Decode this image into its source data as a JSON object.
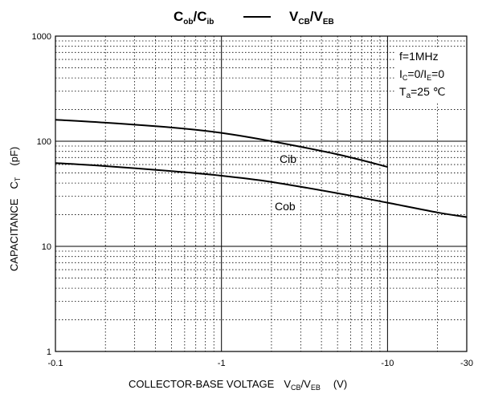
{
  "chart_data": {
    "type": "line",
    "title": {
      "left": {
        "main1": "C",
        "sub1": "ob",
        "sep": "/C",
        "sub2": "ib"
      },
      "right": {
        "main1": "V",
        "sub1": "CB",
        "sep": "/V",
        "sub2": "EB"
      }
    },
    "xlabel": {
      "text": "COLLECTOR-BASE VOLTAGE",
      "sym": "V",
      "sub1": "CB",
      "sep": "/V",
      "sub2": "EB",
      "unit": "(V)"
    },
    "ylabel": {
      "text": "CAPACITANCE",
      "sym": "C",
      "sub": "T",
      "unit": "(pF)"
    },
    "x_scale": "log",
    "y_scale": "log",
    "xlim": [
      -0.1,
      -30
    ],
    "ylim": [
      1,
      1000
    ],
    "x_ticks": [
      {
        "value": -0.1,
        "label": "-0.1"
      },
      {
        "value": -1,
        "label": "-1"
      },
      {
        "value": -10,
        "label": "-10"
      },
      {
        "value": -30,
        "label": "-30"
      }
    ],
    "y_ticks": [
      {
        "value": 1,
        "label": "1"
      },
      {
        "value": 10,
        "label": "10"
      },
      {
        "value": 100,
        "label": "100"
      },
      {
        "value": 1000,
        "label": "1000"
      }
    ],
    "grid": true,
    "conditions": {
      "freq": "f=1MHz",
      "bias": {
        "a": "I",
        "a_sub": "C",
        "b": "=0/I",
        "b_sub": "E",
        "c": "=0"
      },
      "temp": {
        "a": "T",
        "a_sub": "a",
        "b": "=25 ℃"
      }
    },
    "series": [
      {
        "name": "Cib",
        "x": [
          -0.1,
          -0.2,
          -0.5,
          -1,
          -2,
          -5,
          -10
        ],
        "y": [
          160,
          150,
          135,
          120,
          100,
          75,
          57
        ]
      },
      {
        "name": "Cob",
        "x": [
          -0.1,
          -0.2,
          -0.5,
          -1,
          -2,
          -5,
          -10,
          -20,
          -30
        ],
        "y": [
          62,
          58,
          52,
          47,
          41,
          32,
          26,
          21,
          19
        ]
      }
    ]
  }
}
